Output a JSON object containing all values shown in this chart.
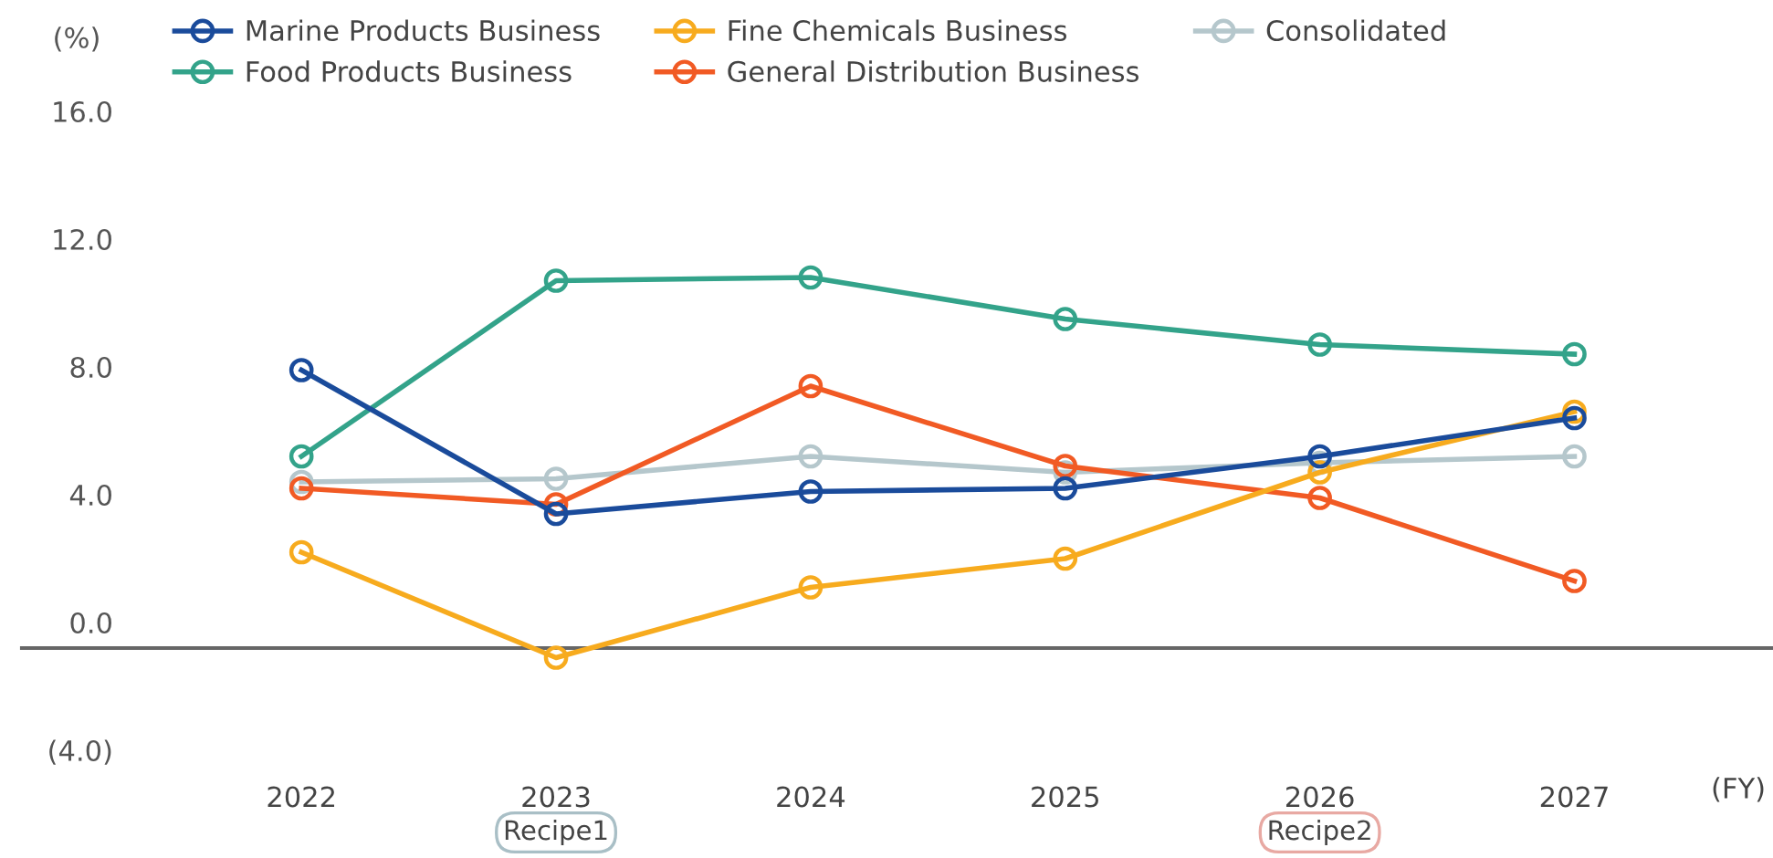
{
  "chart_data": {
    "type": "line",
    "ylabel": "(%)",
    "xlabel": "(FY)",
    "categories": [
      "2022",
      "2023",
      "2024",
      "2025",
      "2026",
      "2027"
    ],
    "series": [
      {
        "name": "Marine Products Business",
        "color": "#1a4b9b",
        "values": [
          7.9,
          3.4,
          4.1,
          4.2,
          5.2,
          6.4
        ]
      },
      {
        "name": "Food Products Business",
        "color": "#33a38a",
        "values": [
          5.2,
          10.7,
          10.8,
          9.5,
          8.7,
          8.4
        ]
      },
      {
        "name": "Fine Chemicals Business",
        "color": "#f7ab1e",
        "values": [
          2.2,
          -1.1,
          1.1,
          2.0,
          4.7,
          6.6
        ]
      },
      {
        "name": "General Distribution Business",
        "color": "#f15a24",
        "values": [
          4.2,
          3.7,
          7.4,
          4.9,
          3.9,
          1.3
        ]
      },
      {
        "name": "Consolidated",
        "color": "#b5c7cc",
        "values": [
          4.4,
          4.5,
          5.2,
          4.7,
          5.0,
          5.2
        ]
      }
    ],
    "ylim": [
      -4,
      16
    ],
    "yticks": [
      {
        "value": -4,
        "label": "(4.0)"
      },
      {
        "value": 0,
        "label": "0.0"
      },
      {
        "value": 4,
        "label": "4.0"
      },
      {
        "value": 8,
        "label": "8.0"
      },
      {
        "value": 12,
        "label": "12.0"
      },
      {
        "value": 16,
        "label": "16.0"
      }
    ],
    "ref_lines": [
      {
        "axis": "y",
        "value": -0.8,
        "color": "#666666"
      }
    ],
    "annotations": [
      "Recipe1",
      "Recipe2"
    ],
    "marker": "circle",
    "line_style": "solid",
    "grid": false,
    "legend": "top"
  }
}
